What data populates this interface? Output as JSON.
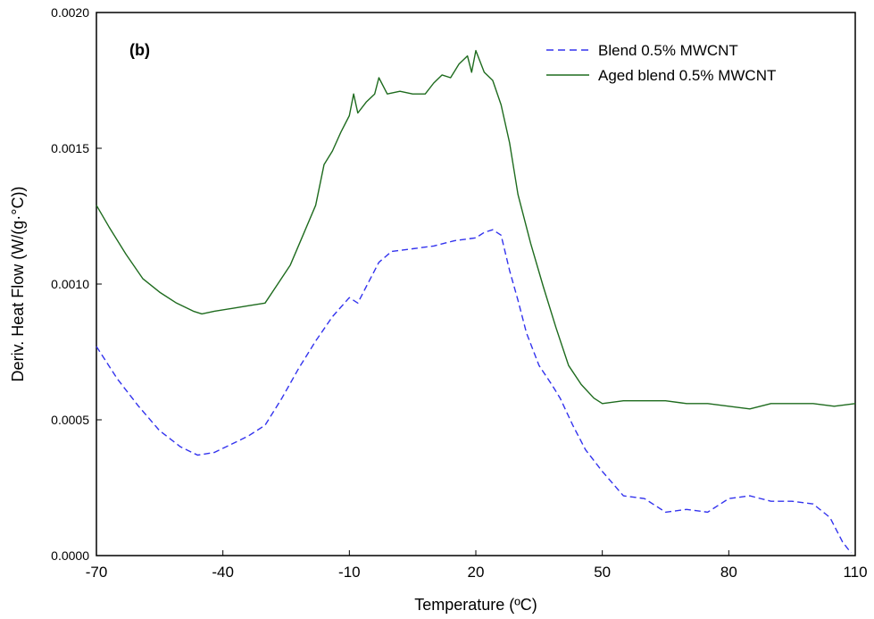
{
  "chart_data": {
    "type": "line",
    "panel_label": "(b)",
    "xlabel": "Temperature (ºC)",
    "ylabel": "Deriv. Heat Flow (W/(g·°C))",
    "xlim": [
      -70,
      110
    ],
    "ylim": [
      0,
      0.002
    ],
    "x_ticks": [
      "-70",
      "-40",
      "-10",
      "20",
      "50",
      "80",
      "110"
    ],
    "x_tick_values": [
      -70,
      -40,
      -10,
      20,
      50,
      80,
      110
    ],
    "y_ticks": [
      "0.0000",
      "0.0005",
      "0.0010",
      "0.0015",
      "0.0020"
    ],
    "y_tick_values": [
      0,
      0.0005,
      0.001,
      0.0015,
      0.002
    ],
    "grid": false,
    "legend_position": "top-right",
    "series": [
      {
        "name": "Blend 0.5% MWCNT",
        "color": "#3333ee",
        "style": "dashed",
        "x": [
          -70,
          -65,
          -60,
          -55,
          -50,
          -46,
          -42,
          -38,
          -34,
          -30,
          -26,
          -22,
          -18,
          -14,
          -10,
          -8,
          -6,
          -3,
          0,
          5,
          10,
          15,
          20,
          22,
          24,
          26,
          28,
          30,
          32,
          35,
          38,
          40,
          43,
          46,
          50,
          55,
          60,
          65,
          70,
          75,
          80,
          85,
          90,
          95,
          100,
          104,
          107,
          109
        ],
        "y": [
          0.00077,
          0.00065,
          0.00055,
          0.00046,
          0.0004,
          0.00037,
          0.00038,
          0.00041,
          0.00044,
          0.00048,
          0.00058,
          0.00069,
          0.00079,
          0.00088,
          0.00095,
          0.00093,
          0.00099,
          0.00108,
          0.00112,
          0.00113,
          0.00114,
          0.00116,
          0.00117,
          0.00119,
          0.0012,
          0.00118,
          0.00105,
          0.00094,
          0.00082,
          0.0007,
          0.00063,
          0.00058,
          0.00048,
          0.00039,
          0.00031,
          0.00022,
          0.00021,
          0.00016,
          0.00017,
          0.00016,
          0.00021,
          0.00022,
          0.0002,
          0.0002,
          0.00019,
          0.00014,
          5e-05,
          1e-05
        ]
      },
      {
        "name": "Aged blend 0.5% MWCNT",
        "color": "#1e6b1e",
        "style": "solid",
        "x": [
          -70,
          -67,
          -63,
          -59,
          -55,
          -51,
          -47,
          -45,
          -42,
          -38,
          -34,
          -30,
          -27,
          -24,
          -21,
          -18,
          -16,
          -14,
          -12,
          -10,
          -9,
          -8,
          -6,
          -4,
          -3,
          -1,
          2,
          5,
          8,
          10,
          12,
          14,
          16,
          18,
          19,
          20,
          22,
          24,
          26,
          28,
          30,
          33,
          36,
          39,
          42,
          45,
          48,
          50,
          55,
          60,
          65,
          70,
          75,
          80,
          85,
          90,
          95,
          100,
          105,
          110
        ],
        "y": [
          0.00129,
          0.00121,
          0.00111,
          0.00102,
          0.00097,
          0.00093,
          0.0009,
          0.00089,
          0.0009,
          0.00091,
          0.00092,
          0.00093,
          0.001,
          0.00107,
          0.00118,
          0.00129,
          0.00144,
          0.00149,
          0.00156,
          0.00162,
          0.0017,
          0.00163,
          0.00167,
          0.0017,
          0.00176,
          0.0017,
          0.00171,
          0.0017,
          0.0017,
          0.00174,
          0.00177,
          0.00176,
          0.00181,
          0.00184,
          0.00178,
          0.00186,
          0.00178,
          0.00175,
          0.00166,
          0.00152,
          0.00133,
          0.00115,
          0.00099,
          0.00084,
          0.0007,
          0.00063,
          0.00058,
          0.00056,
          0.00057,
          0.00057,
          0.00057,
          0.00056,
          0.00056,
          0.00055,
          0.00054,
          0.00056,
          0.00056,
          0.00056,
          0.00055,
          0.00056
        ]
      }
    ]
  }
}
